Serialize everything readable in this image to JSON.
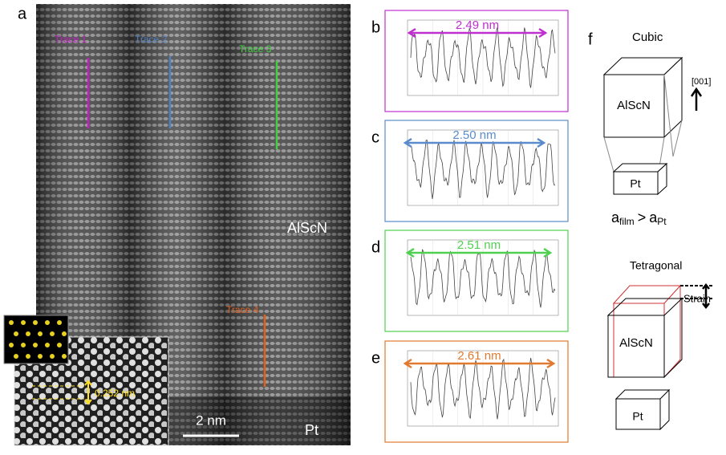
{
  "panel_a": {
    "label": "a",
    "traces": [
      "Trace 1",
      "Trace 2",
      "Trace 3",
      "Trace 4"
    ],
    "material": "AlScN",
    "substrate": "Pt",
    "scale_bar": "2 nm",
    "inset_spacing": "0.252 nm"
  },
  "profiles": [
    {
      "label": "b",
      "measurement": "2.49 nm"
    },
    {
      "label": "c",
      "measurement": "2.50 nm"
    },
    {
      "label": "d",
      "measurement": "2.51 nm"
    },
    {
      "label": "e",
      "measurement": "2.61 nm"
    }
  ],
  "panel_f": {
    "label": "f",
    "cubic": "Cubic",
    "direction": "[001]",
    "film": "AlScN",
    "substrate": "Pt",
    "relation": [
      "a",
      "film",
      ">",
      "a",
      "Pt"
    ],
    "tetragonal": "Tetragonal",
    "strain": "Strain",
    "film_2": "AlScN",
    "substrate_2": "Pt"
  }
}
